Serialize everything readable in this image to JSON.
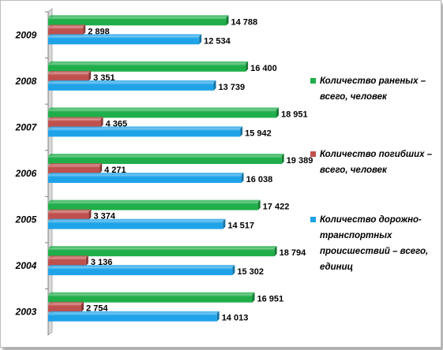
{
  "chart_data": {
    "type": "bar",
    "orientation": "horizontal",
    "categories": [
      "2009",
      "2008",
      "2007",
      "2006",
      "2005",
      "2004",
      "2003"
    ],
    "series": [
      {
        "name": "Количество раненых – всего, человек",
        "color": "#1fae4a",
        "values": [
          14788,
          16400,
          18951,
          19389,
          17422,
          18794,
          16951
        ],
        "labels": [
          "14 788",
          "16 400",
          "18 951",
          "19 389",
          "17 422",
          "18 794",
          "16 951"
        ]
      },
      {
        "name": "Количество погибших – всего, человек",
        "color": "#c0504d",
        "values": [
          2898,
          3351,
          4365,
          4271,
          3374,
          3136,
          2754
        ],
        "labels": [
          "2 898",
          "3 351",
          "4 365",
          "4 271",
          "3 374",
          "3 136",
          "2 754"
        ]
      },
      {
        "name": "Количество дорожно-транспортных происшествий – всего, единиц",
        "color": "#1fa3e8",
        "values": [
          12534,
          13739,
          15942,
          16038,
          14517,
          15302,
          14013
        ],
        "labels": [
          "12 534",
          "13 739",
          "15 942",
          "16 038",
          "14 517",
          "15 302",
          "14 013"
        ]
      }
    ],
    "xlim": [
      0,
      22000
    ],
    "grid": false,
    "legend_position": "right"
  },
  "legend": {
    "items": [
      {
        "lines": [
          "Количество раненых –",
          "всего, человек"
        ],
        "color": "#1fae4a"
      },
      {
        "lines": [
          "Количество погибших –",
          "всего, человек"
        ],
        "color": "#c0504d"
      },
      {
        "lines": [
          "Количество дорожно-",
          "транспортных",
          "происшествий – всего,",
          "единиц"
        ],
        "color": "#1fa3e8"
      }
    ]
  }
}
